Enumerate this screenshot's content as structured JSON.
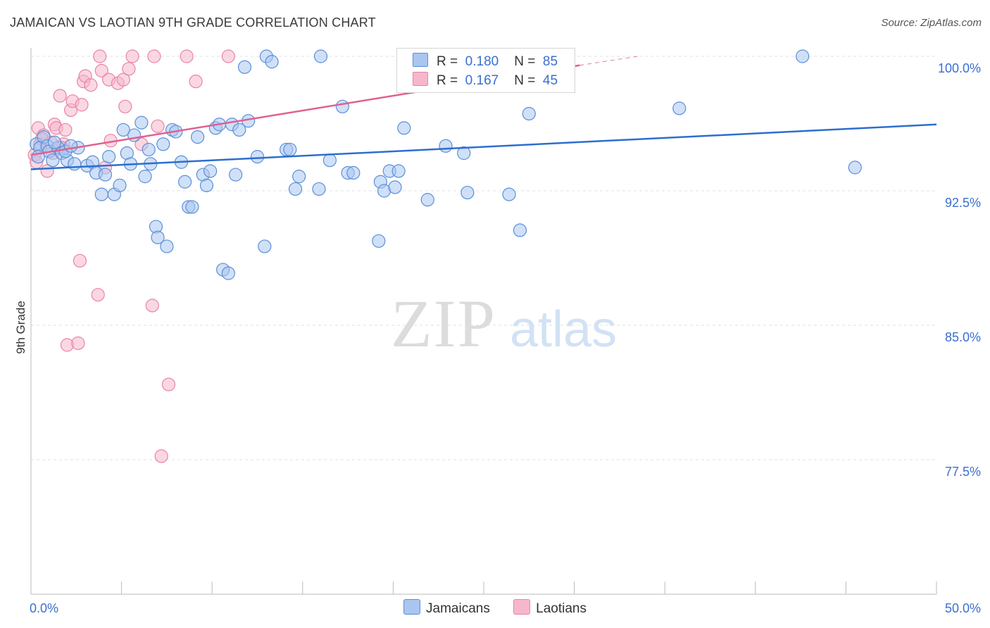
{
  "title": "JAMAICAN VS LAOTIAN 9TH GRADE CORRELATION CHART",
  "source": "Source: ZipAtlas.com",
  "watermark": {
    "zip": "ZIP",
    "atlas": "atlas"
  },
  "legend_top": [
    {
      "r_label": "R =",
      "r_value": "0.180",
      "n_label": "N =",
      "n_value": "85"
    },
    {
      "r_label": "R =",
      "r_value": "0.167",
      "n_label": "N =",
      "n_value": "45"
    }
  ],
  "colors": {
    "jamaican_fill": "#a9c6f0",
    "jamaican_stroke": "#5b8fd8",
    "jamaican_line": "#2c6fcf",
    "laotian_fill": "#f6b7cc",
    "laotian_stroke": "#e784a6",
    "laotian_line": "#e0608e",
    "tick_label": "#3a6fd0"
  },
  "chart_data": {
    "type": "scatter",
    "title": "JAMAICAN VS LAOTIAN 9TH GRADE CORRELATION CHART",
    "xlabel": "",
    "ylabel": "9th Grade",
    "xlim": [
      0,
      50
    ],
    "ylim": [
      71.0,
      101.0
    ],
    "x_tick_labels": [
      {
        "value": 0,
        "label": "0.0%"
      },
      {
        "value": 50,
        "label": "50.0%"
      }
    ],
    "y_tick_labels": [
      {
        "value": 100,
        "label": "100.0%"
      },
      {
        "value": 92.5,
        "label": "92.5%"
      },
      {
        "value": 85,
        "label": "85.0%"
      },
      {
        "value": 77.5,
        "label": "77.5%"
      }
    ],
    "grid": true,
    "legend_position": "bottom",
    "series": [
      {
        "name": "Jamaicans",
        "trend": {
          "x": [
            0,
            50
          ],
          "y": [
            93.7,
            96.2
          ]
        },
        "points": [
          [
            0.3,
            95.1
          ],
          [
            0.5,
            94.9
          ],
          [
            0.7,
            95.5
          ],
          [
            0.9,
            95.0
          ],
          [
            1.0,
            94.7
          ],
          [
            1.2,
            94.2
          ],
          [
            1.5,
            94.9
          ],
          [
            1.7,
            94.6
          ],
          [
            2.0,
            94.2
          ],
          [
            2.4,
            94.0
          ],
          [
            2.6,
            94.9
          ],
          [
            3.1,
            93.9
          ],
          [
            3.4,
            94.1
          ],
          [
            3.6,
            93.5
          ],
          [
            3.9,
            92.3
          ],
          [
            4.1,
            93.4
          ],
          [
            4.3,
            94.4
          ],
          [
            4.6,
            92.3
          ],
          [
            4.9,
            92.8
          ],
          [
            5.1,
            95.9
          ],
          [
            5.3,
            94.6
          ],
          [
            5.5,
            94.0
          ],
          [
            5.7,
            95.6
          ],
          [
            6.1,
            96.3
          ],
          [
            6.3,
            93.3
          ],
          [
            6.5,
            94.8
          ],
          [
            6.6,
            94.0
          ],
          [
            6.9,
            90.5
          ],
          [
            7.0,
            89.9
          ],
          [
            7.3,
            95.1
          ],
          [
            7.5,
            89.4
          ],
          [
            7.8,
            95.9
          ],
          [
            8.0,
            95.8
          ],
          [
            8.3,
            94.1
          ],
          [
            8.5,
            93.0
          ],
          [
            8.7,
            91.6
          ],
          [
            8.9,
            91.6
          ],
          [
            9.2,
            95.5
          ],
          [
            9.5,
            93.4
          ],
          [
            9.7,
            92.8
          ],
          [
            9.9,
            93.6
          ],
          [
            10.2,
            96.0
          ],
          [
            10.4,
            96.2
          ],
          [
            10.6,
            88.1
          ],
          [
            10.9,
            87.9
          ],
          [
            11.1,
            96.2
          ],
          [
            11.3,
            93.4
          ],
          [
            11.5,
            95.9
          ],
          [
            11.8,
            99.4
          ],
          [
            12.0,
            96.4
          ],
          [
            12.5,
            94.4
          ],
          [
            12.9,
            89.4
          ],
          [
            13.0,
            100.0
          ],
          [
            13.3,
            99.7
          ],
          [
            14.1,
            94.8
          ],
          [
            14.3,
            94.8
          ],
          [
            14.6,
            92.6
          ],
          [
            14.8,
            93.3
          ],
          [
            15.9,
            92.6
          ],
          [
            16.0,
            100.0
          ],
          [
            16.5,
            94.2
          ],
          [
            17.2,
            97.2
          ],
          [
            17.5,
            93.5
          ],
          [
            17.8,
            93.5
          ],
          [
            19.2,
            89.7
          ],
          [
            19.3,
            93.0
          ],
          [
            19.5,
            92.5
          ],
          [
            19.8,
            93.6
          ],
          [
            20.1,
            92.7
          ],
          [
            20.3,
            93.6
          ],
          [
            20.6,
            96.0
          ],
          [
            21.9,
            92.0
          ],
          [
            22.9,
            95.0
          ],
          [
            23.9,
            94.6
          ],
          [
            24.1,
            92.4
          ],
          [
            26.4,
            92.3
          ],
          [
            27.0,
            90.3
          ],
          [
            27.5,
            96.8
          ],
          [
            35.8,
            97.1
          ],
          [
            42.6,
            100.0
          ],
          [
            45.5,
            93.8
          ],
          [
            1.3,
            95.2
          ],
          [
            1.9,
            94.7
          ],
          [
            0.4,
            94.4
          ],
          [
            2.2,
            95.0
          ]
        ]
      },
      {
        "name": "Laotians",
        "trend": {
          "x": [
            0,
            30.3
          ],
          "y": [
            94.5,
            99.5
          ]
        },
        "trend_dashed": {
          "x": [
            30.3,
            33.5
          ],
          "y": [
            99.5,
            100.0
          ]
        },
        "points": [
          [
            0.2,
            94.5
          ],
          [
            0.3,
            94.1
          ],
          [
            0.4,
            96.0
          ],
          [
            0.5,
            95.1
          ],
          [
            0.7,
            95.6
          ],
          [
            0.9,
            93.6
          ],
          [
            1.1,
            95.2
          ],
          [
            1.2,
            94.6
          ],
          [
            1.3,
            96.2
          ],
          [
            1.4,
            96.0
          ],
          [
            1.6,
            97.8
          ],
          [
            1.8,
            95.1
          ],
          [
            1.9,
            95.9
          ],
          [
            2.0,
            83.9
          ],
          [
            2.2,
            97.0
          ],
          [
            2.3,
            97.5
          ],
          [
            2.6,
            84.0
          ],
          [
            2.7,
            88.6
          ],
          [
            2.8,
            97.3
          ],
          [
            2.9,
            98.6
          ],
          [
            3.0,
            98.9
          ],
          [
            3.3,
            98.4
          ],
          [
            3.7,
            86.7
          ],
          [
            3.8,
            100.0
          ],
          [
            3.9,
            99.2
          ],
          [
            4.1,
            93.8
          ],
          [
            4.3,
            98.7
          ],
          [
            4.4,
            95.3
          ],
          [
            4.8,
            98.5
          ],
          [
            5.1,
            98.7
          ],
          [
            5.2,
            97.2
          ],
          [
            5.4,
            99.3
          ],
          [
            5.6,
            100.0
          ],
          [
            6.1,
            95.1
          ],
          [
            6.7,
            86.1
          ],
          [
            6.8,
            100.0
          ],
          [
            7.0,
            96.1
          ],
          [
            7.2,
            77.7
          ],
          [
            7.6,
            81.7
          ],
          [
            8.6,
            100.0
          ],
          [
            9.1,
            98.6
          ],
          [
            10.9,
            100.0
          ],
          [
            26.5,
            100.0
          ],
          [
            1.7,
            94.9
          ],
          [
            0.6,
            95.4
          ]
        ]
      }
    ]
  },
  "legend_bottom": [
    "Jamaicans",
    "Laotians"
  ]
}
